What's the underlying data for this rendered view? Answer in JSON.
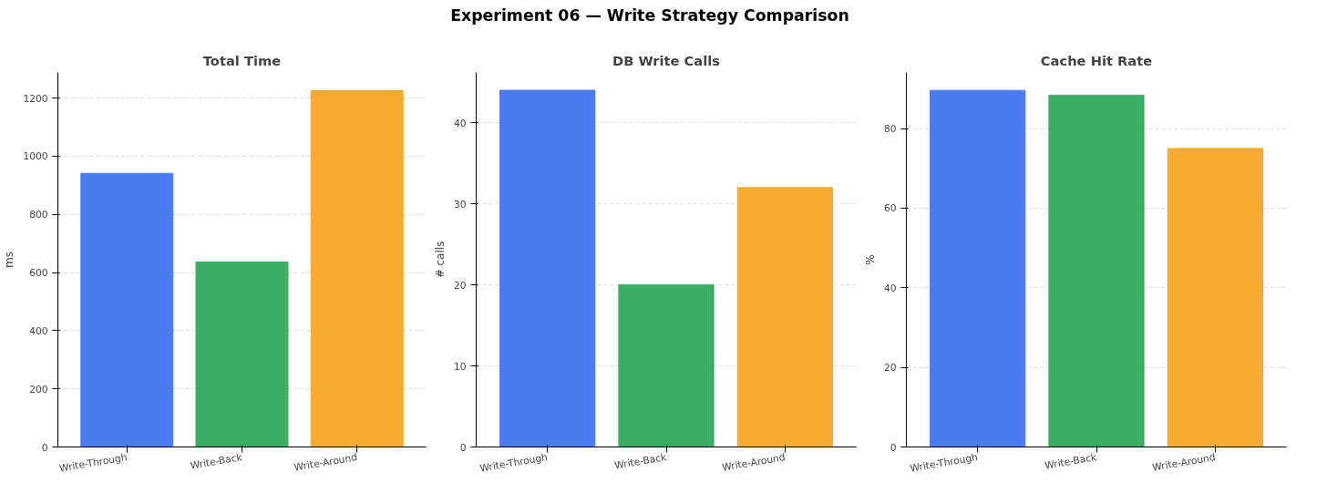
{
  "chart_data": [
    {
      "type": "bar",
      "title": "Total Time",
      "annotations": [
        "Experiment 06 — Write Strategy Comparison"
      ],
      "ylabel": "ms",
      "categories": [
        "Write-Through",
        "Write-Back",
        "Write-Around"
      ],
      "values": [
        941,
        636,
        1226
      ],
      "colors": [
        "#4a7cf0",
        "#3aaf63",
        "#f5ab30"
      ],
      "ylim": [
        0,
        1288
      ],
      "yticks": [
        0,
        200,
        400,
        600,
        800,
        1000,
        1200
      ],
      "grid": "y",
      "legend": false
    },
    {
      "type": "bar",
      "title": "DB Write Calls",
      "ylabel": "# calls",
      "categories": [
        "Write-Through",
        "Write-Back",
        "Write-Around"
      ],
      "values": [
        44,
        20,
        32
      ],
      "colors": [
        "#4a7cf0",
        "#3aaf63",
        "#f5ab30"
      ],
      "ylim": [
        0,
        46.2
      ],
      "yticks": [
        0,
        10,
        20,
        30,
        40
      ],
      "grid": "y",
      "legend": false
    },
    {
      "type": "bar",
      "title": "Cache Hit Rate",
      "ylabel": "%",
      "categories": [
        "Write-Through",
        "Write-Back",
        "Write-Around"
      ],
      "values": [
        89.6,
        88.4,
        75
      ],
      "colors": [
        "#4a7cf0",
        "#3aaf63",
        "#f5ab30"
      ],
      "ylim": [
        0,
        94.1
      ],
      "yticks": [
        0,
        20,
        40,
        60,
        80
      ],
      "grid": "y",
      "legend": false
    }
  ]
}
